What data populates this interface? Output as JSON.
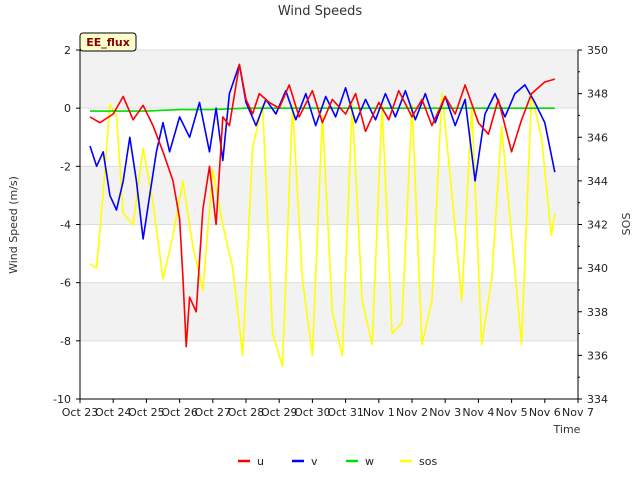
{
  "chart_data": {
    "type": "line",
    "title": "Wind Speeds",
    "badge": "EE_flux",
    "xlabel": "Time",
    "ylabel": "Wind Speed (m/s)",
    "ylabel_right": "SOS",
    "ylim": [
      -10,
      2
    ],
    "ylim_right": [
      334,
      350
    ],
    "xlim": [
      0,
      15
    ],
    "y_ticks": [
      2,
      0,
      -2,
      -4,
      -6,
      -8,
      -10
    ],
    "y_tick_labels": [
      "2",
      "0",
      "-2",
      "-4",
      "-6",
      "-8",
      "-10"
    ],
    "y2_ticks": [
      350,
      348,
      346,
      344,
      342,
      340,
      338,
      336,
      334
    ],
    "y2_tick_labels": [
      "350",
      "348",
      "346",
      "344",
      "342",
      "340",
      "338",
      "336",
      "334"
    ],
    "x_ticks": [
      0,
      1,
      2,
      3,
      4,
      5,
      6,
      7,
      8,
      9,
      10,
      11,
      12,
      13,
      14,
      15
    ],
    "x_tick_labels": [
      "Oct 23",
      "Oct 24",
      "Oct 25",
      "Oct 26",
      "Oct 27",
      "Oct 28",
      "Oct 29",
      "Oct 30",
      "Oct 31",
      "Nov 1",
      "Nov 2",
      "Nov 3",
      "Nov 4",
      "Nov 5",
      "Nov 6",
      "Nov 7"
    ],
    "grid": true,
    "legend_position": "bottom",
    "series": [
      {
        "name": "u",
        "color": "#ff0000",
        "axis": "left",
        "x": [
          0.3,
          0.6,
          1.0,
          1.3,
          1.6,
          1.9,
          2.2,
          2.5,
          2.8,
          3.0,
          3.1,
          3.2,
          3.3,
          3.5,
          3.7,
          3.9,
          4.1,
          4.3,
          4.5,
          4.8,
          5.0,
          5.2,
          5.4,
          5.7,
          6.0,
          6.3,
          6.6,
          7.0,
          7.3,
          7.6,
          8.0,
          8.3,
          8.6,
          9.0,
          9.3,
          9.6,
          10.0,
          10.3,
          10.6,
          11.0,
          11.3,
          11.6,
          12.0,
          12.3,
          12.6,
          13.0,
          13.3,
          13.6,
          14.0,
          14.3
        ],
        "y": [
          -0.3,
          -0.5,
          -0.2,
          0.4,
          -0.4,
          0.1,
          -0.6,
          -1.5,
          -2.5,
          -3.8,
          -5.8,
          -8.2,
          -6.5,
          -7.0,
          -3.5,
          -2.0,
          -4.0,
          -0.3,
          -0.6,
          1.5,
          0.3,
          -0.2,
          0.5,
          0.2,
          0.0,
          0.8,
          -0.3,
          0.6,
          -0.5,
          0.3,
          -0.2,
          0.5,
          -0.8,
          0.2,
          -0.4,
          0.6,
          -0.3,
          0.3,
          -0.6,
          0.4,
          -0.2,
          0.8,
          -0.5,
          -0.9,
          0.3,
          -1.5,
          -0.4,
          0.5,
          0.9,
          1.0
        ]
      },
      {
        "name": "v",
        "color": "#0000ff",
        "axis": "left",
        "x": [
          0.3,
          0.5,
          0.7,
          0.9,
          1.1,
          1.3,
          1.5,
          1.7,
          1.9,
          2.1,
          2.3,
          2.5,
          2.7,
          3.0,
          3.3,
          3.6,
          3.9,
          4.1,
          4.3,
          4.5,
          4.8,
          5.0,
          5.3,
          5.6,
          5.9,
          6.2,
          6.5,
          6.8,
          7.1,
          7.4,
          7.7,
          8.0,
          8.3,
          8.6,
          8.9,
          9.2,
          9.5,
          9.8,
          10.1,
          10.4,
          10.7,
          11.0,
          11.3,
          11.6,
          11.9,
          12.2,
          12.5,
          12.8,
          13.1,
          13.4,
          13.7,
          14.0,
          14.3
        ],
        "y": [
          -1.3,
          -2.0,
          -1.5,
          -3.0,
          -3.5,
          -2.5,
          -1.0,
          -2.5,
          -4.5,
          -3.0,
          -1.5,
          -0.5,
          -1.5,
          -0.3,
          -1.0,
          0.2,
          -1.5,
          0.0,
          -1.8,
          0.5,
          1.5,
          0.2,
          -0.6,
          0.3,
          -0.2,
          0.6,
          -0.4,
          0.5,
          -0.6,
          0.4,
          -0.3,
          0.7,
          -0.5,
          0.3,
          -0.4,
          0.5,
          -0.3,
          0.6,
          -0.4,
          0.5,
          -0.5,
          0.4,
          -0.6,
          0.3,
          -2.5,
          -0.2,
          0.5,
          -0.3,
          0.5,
          0.8,
          0.2,
          -0.5,
          -2.2
        ]
      },
      {
        "name": "w",
        "color": "#00dd00",
        "axis": "left",
        "x": [
          0.3,
          1.0,
          2.0,
          3.0,
          4.0,
          5.0,
          6.0,
          7.0,
          8.0,
          9.0,
          10.0,
          11.0,
          12.0,
          13.0,
          14.0,
          14.3
        ],
        "y": [
          -0.1,
          -0.1,
          -0.1,
          -0.05,
          -0.05,
          0.0,
          0.0,
          0.0,
          0.0,
          0.0,
          0.0,
          0.0,
          0.0,
          0.0,
          0.0,
          0.0
        ]
      },
      {
        "name": "sos",
        "color": "#ffff00",
        "axis": "right",
        "x": [
          0.3,
          0.5,
          0.7,
          0.9,
          1.1,
          1.3,
          1.6,
          1.9,
          2.2,
          2.5,
          2.8,
          3.1,
          3.4,
          3.7,
          4.0,
          4.3,
          4.6,
          4.9,
          5.2,
          5.5,
          5.8,
          6.1,
          6.4,
          6.7,
          7.0,
          7.3,
          7.6,
          7.9,
          8.2,
          8.5,
          8.8,
          9.1,
          9.4,
          9.7,
          10.0,
          10.3,
          10.6,
          10.9,
          11.2,
          11.5,
          11.8,
          12.1,
          12.4,
          12.7,
          13.0,
          13.3,
          13.6,
          13.9,
          14.2,
          14.3
        ],
        "y": [
          340.2,
          340.0,
          343.5,
          347.5,
          347.0,
          342.5,
          342.0,
          345.5,
          343.0,
          339.5,
          341.5,
          344.0,
          341.0,
          339.0,
          344.5,
          342.0,
          340.0,
          336.0,
          345.5,
          347.5,
          337.0,
          335.5,
          347.5,
          339.5,
          336.0,
          347.0,
          338.0,
          336.0,
          347.5,
          338.5,
          336.5,
          347.5,
          337.0,
          337.5,
          347.5,
          336.5,
          338.5,
          348.0,
          343.5,
          338.5,
          347.5,
          336.5,
          339.5,
          346.5,
          341.5,
          336.5,
          348.0,
          346.0,
          341.5,
          342.5
        ]
      }
    ]
  }
}
